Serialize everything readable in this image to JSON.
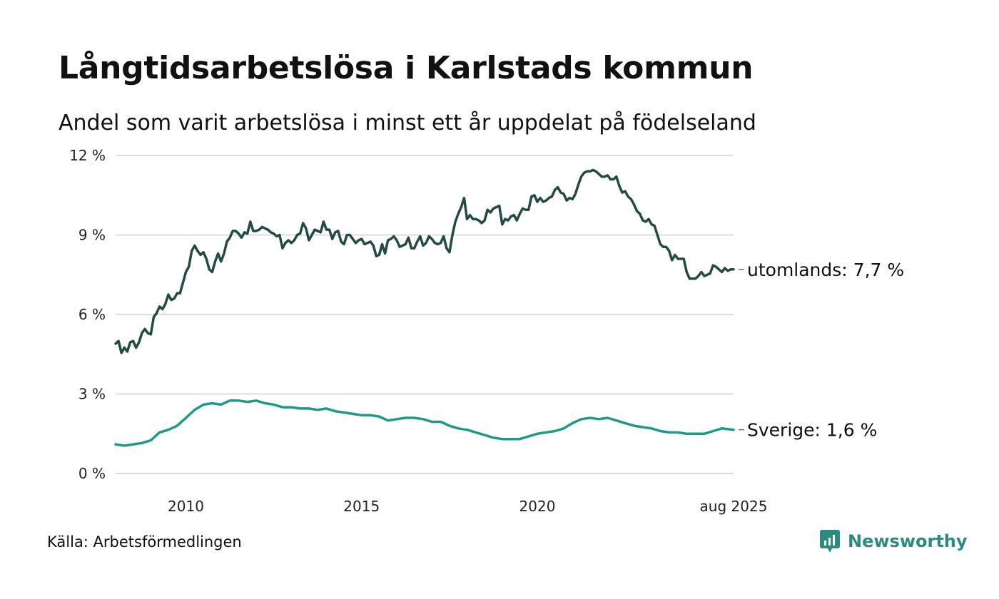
{
  "title": "Långtidsarbetslösa i Karlstads kommun",
  "subtitle": "Andel som varit arbetslösa i minst ett år uppdelat på födelseland",
  "source": "Källa: Arbetsförmedlingen",
  "brand": {
    "name": "Newsworthy",
    "color": "#2d8a80"
  },
  "chart_data": {
    "type": "line",
    "title": "Långtidsarbetslösa i Karlstads kommun",
    "subtitle": "Andel som varit arbetslösa i minst ett år uppdelat på födelseland",
    "xlabel": "",
    "ylabel": "",
    "ylim": [
      0,
      12
    ],
    "xlim": [
      "2008-01",
      "2025-08"
    ],
    "y_ticks": [
      {
        "value": 0,
        "label": "0 %"
      },
      {
        "value": 3,
        "label": "3 %"
      },
      {
        "value": 6,
        "label": "6 %"
      },
      {
        "value": 9,
        "label": "9 %"
      },
      {
        "value": 12,
        "label": "12 %"
      }
    ],
    "x_ticks": [
      {
        "value": "2010-01",
        "label": "2010"
      },
      {
        "value": "2015-01",
        "label": "2015"
      },
      {
        "value": "2020-01",
        "label": "2020"
      },
      {
        "value": "2025-08",
        "label": "aug 2025"
      }
    ],
    "grid": "horizontal",
    "legend": "direct labels at line ends",
    "series": [
      {
        "name": "utomlands",
        "end_label": "utomlands: 7,7 %",
        "color": "#234a44",
        "x": [
          "2008-01",
          "2008-02",
          "2008-03",
          "2008-04",
          "2008-05",
          "2008-06",
          "2008-07",
          "2008-08",
          "2008-09",
          "2008-10",
          "2008-11",
          "2008-12",
          "2009-01",
          "2009-02",
          "2009-03",
          "2009-04",
          "2009-05",
          "2009-06",
          "2009-07",
          "2009-08",
          "2009-09",
          "2009-10",
          "2009-11",
          "2009-12",
          "2010-01",
          "2010-02",
          "2010-03",
          "2010-04",
          "2010-05",
          "2010-06",
          "2010-07",
          "2010-08",
          "2010-09",
          "2010-10",
          "2010-11",
          "2010-12",
          "2011-01",
          "2011-02",
          "2011-03",
          "2011-04",
          "2011-05",
          "2011-06",
          "2011-07",
          "2011-08",
          "2011-09",
          "2011-10",
          "2011-11",
          "2011-12",
          "2012-01",
          "2012-02",
          "2012-03",
          "2012-04",
          "2012-05",
          "2012-06",
          "2012-07",
          "2012-08",
          "2012-09",
          "2012-10",
          "2012-11",
          "2012-12",
          "2013-01",
          "2013-02",
          "2013-03",
          "2013-04",
          "2013-05",
          "2013-06",
          "2013-07",
          "2013-08",
          "2013-09",
          "2013-10",
          "2013-11",
          "2013-12",
          "2014-01",
          "2014-02",
          "2014-03",
          "2014-04",
          "2014-05",
          "2014-06",
          "2014-07",
          "2014-08",
          "2014-09",
          "2014-10",
          "2014-11",
          "2014-12",
          "2015-01",
          "2015-02",
          "2015-03",
          "2015-04",
          "2015-05",
          "2015-06",
          "2015-07",
          "2015-08",
          "2015-09",
          "2015-10",
          "2015-11",
          "2015-12",
          "2016-01",
          "2016-02",
          "2016-03",
          "2016-04",
          "2016-05",
          "2016-06",
          "2016-07",
          "2016-08",
          "2016-09",
          "2016-10",
          "2016-11",
          "2016-12",
          "2017-01",
          "2017-02",
          "2017-03",
          "2017-04",
          "2017-05",
          "2017-06",
          "2017-07",
          "2017-08",
          "2017-09",
          "2017-10",
          "2017-11",
          "2017-12",
          "2018-01",
          "2018-02",
          "2018-03",
          "2018-04",
          "2018-05",
          "2018-06",
          "2018-07",
          "2018-08",
          "2018-09",
          "2018-10",
          "2018-11",
          "2018-12",
          "2019-01",
          "2019-02",
          "2019-03",
          "2019-04",
          "2019-05",
          "2019-06",
          "2019-07",
          "2019-08",
          "2019-09",
          "2019-10",
          "2019-11",
          "2019-12",
          "2020-01",
          "2020-02",
          "2020-03",
          "2020-04",
          "2020-05",
          "2020-06",
          "2020-07",
          "2020-08",
          "2020-09",
          "2020-10",
          "2020-11",
          "2020-12",
          "2021-01",
          "2021-02",
          "2021-03",
          "2021-04",
          "2021-05",
          "2021-06",
          "2021-07",
          "2021-08",
          "2021-09",
          "2021-10",
          "2021-11",
          "2021-12",
          "2022-01",
          "2022-02",
          "2022-03",
          "2022-04",
          "2022-05",
          "2022-06",
          "2022-07",
          "2022-08",
          "2022-09",
          "2022-10",
          "2022-11",
          "2022-12",
          "2023-01",
          "2023-02",
          "2023-03",
          "2023-04",
          "2023-05",
          "2023-06",
          "2023-07",
          "2023-08",
          "2023-09",
          "2023-10",
          "2023-11",
          "2023-12",
          "2024-01",
          "2024-02",
          "2024-03",
          "2024-04",
          "2024-05",
          "2024-06",
          "2024-07",
          "2024-08",
          "2024-09",
          "2024-10",
          "2024-11",
          "2024-12",
          "2025-01",
          "2025-02",
          "2025-03",
          "2025-04",
          "2025-05",
          "2025-06",
          "2025-07",
          "2025-08"
        ],
        "values": [
          4.9,
          5.0,
          4.55,
          4.75,
          4.6,
          4.95,
          5.0,
          4.75,
          4.95,
          5.3,
          5.45,
          5.3,
          5.25,
          5.9,
          6.05,
          6.3,
          6.2,
          6.4,
          6.75,
          6.55,
          6.6,
          6.8,
          6.8,
          7.2,
          7.6,
          7.8,
          8.4,
          8.6,
          8.4,
          8.25,
          8.35,
          8.1,
          7.7,
          7.6,
          8.0,
          8.3,
          8.0,
          8.3,
          8.75,
          8.9,
          9.15,
          9.15,
          9.05,
          8.9,
          9.1,
          9.05,
          9.5,
          9.15,
          9.15,
          9.2,
          9.3,
          9.25,
          9.2,
          9.1,
          9.05,
          8.95,
          9.0,
          8.5,
          8.7,
          8.8,
          8.7,
          8.8,
          9.0,
          9.05,
          9.45,
          9.25,
          8.8,
          9.0,
          9.2,
          9.15,
          9.1,
          9.5,
          9.2,
          9.2,
          8.85,
          9.1,
          9.15,
          8.75,
          8.65,
          9.0,
          9.0,
          8.85,
          8.7,
          8.8,
          8.85,
          8.65,
          8.7,
          8.75,
          8.6,
          8.2,
          8.25,
          8.65,
          8.3,
          8.8,
          8.85,
          8.95,
          8.8,
          8.55,
          8.6,
          8.65,
          8.9,
          8.5,
          8.5,
          8.75,
          8.95,
          8.6,
          8.7,
          8.95,
          8.85,
          8.7,
          8.65,
          8.7,
          8.95,
          8.5,
          8.35,
          9.0,
          9.5,
          9.8,
          10.05,
          10.4,
          9.6,
          9.75,
          9.6,
          9.6,
          9.55,
          9.45,
          9.55,
          9.95,
          9.85,
          10.0,
          10.05,
          10.1,
          9.4,
          9.6,
          9.55,
          9.7,
          9.75,
          9.55,
          9.8,
          10.0,
          9.95,
          9.95,
          10.45,
          10.5,
          10.25,
          10.4,
          10.25,
          10.3,
          10.4,
          10.45,
          10.7,
          10.8,
          10.6,
          10.55,
          10.3,
          10.4,
          10.35,
          10.55,
          10.9,
          11.2,
          11.35,
          11.4,
          11.4,
          11.45,
          11.4,
          11.3,
          11.2,
          11.2,
          11.25,
          11.1,
          11.1,
          11.2,
          10.85,
          10.6,
          10.65,
          10.45,
          10.35,
          10.15,
          9.9,
          9.8,
          9.55,
          9.5,
          9.6,
          9.4,
          9.35,
          9.0,
          8.65,
          8.55,
          8.55,
          8.4,
          8.05,
          8.25,
          8.1,
          8.1,
          8.1,
          7.6,
          7.35,
          7.35,
          7.35,
          7.45,
          7.6,
          7.45,
          7.5,
          7.55,
          7.85,
          7.8,
          7.7,
          7.6,
          7.75,
          7.65,
          7.7,
          7.7
        ]
      },
      {
        "name": "Sverige",
        "end_label": "Sverige: 1,6 %",
        "color": "#1e9a8b",
        "x": [
          "2008-01",
          "2008-04",
          "2008-07",
          "2008-10",
          "2009-01",
          "2009-04",
          "2009-07",
          "2009-10",
          "2010-01",
          "2010-04",
          "2010-07",
          "2010-10",
          "2011-01",
          "2011-04",
          "2011-07",
          "2011-10",
          "2012-01",
          "2012-04",
          "2012-07",
          "2012-10",
          "2013-01",
          "2013-04",
          "2013-07",
          "2013-10",
          "2014-01",
          "2014-04",
          "2014-07",
          "2014-10",
          "2015-01",
          "2015-04",
          "2015-07",
          "2015-10",
          "2016-01",
          "2016-04",
          "2016-07",
          "2016-10",
          "2017-01",
          "2017-04",
          "2017-07",
          "2017-10",
          "2018-01",
          "2018-04",
          "2018-07",
          "2018-10",
          "2019-01",
          "2019-04",
          "2019-07",
          "2019-10",
          "2020-01",
          "2020-04",
          "2020-07",
          "2020-10",
          "2021-01",
          "2021-04",
          "2021-07",
          "2021-10",
          "2022-01",
          "2022-04",
          "2022-07",
          "2022-10",
          "2023-01",
          "2023-04",
          "2023-07",
          "2023-10",
          "2024-01",
          "2024-04",
          "2024-07",
          "2024-10",
          "2025-01",
          "2025-04",
          "2025-08"
        ],
        "values": [
          1.1,
          1.05,
          1.1,
          1.15,
          1.25,
          1.55,
          1.65,
          1.8,
          2.1,
          2.4,
          2.6,
          2.65,
          2.6,
          2.75,
          2.75,
          2.7,
          2.75,
          2.65,
          2.6,
          2.5,
          2.5,
          2.45,
          2.45,
          2.4,
          2.45,
          2.35,
          2.3,
          2.25,
          2.2,
          2.2,
          2.15,
          2.0,
          2.05,
          2.1,
          2.1,
          2.05,
          1.95,
          1.95,
          1.8,
          1.7,
          1.65,
          1.55,
          1.45,
          1.35,
          1.3,
          1.3,
          1.3,
          1.4,
          1.5,
          1.55,
          1.6,
          1.7,
          1.9,
          2.05,
          2.1,
          2.05,
          2.1,
          2.0,
          1.9,
          1.8,
          1.75,
          1.7,
          1.6,
          1.55,
          1.55,
          1.5,
          1.5,
          1.5,
          1.6,
          1.7,
          1.65
        ]
      }
    ]
  }
}
